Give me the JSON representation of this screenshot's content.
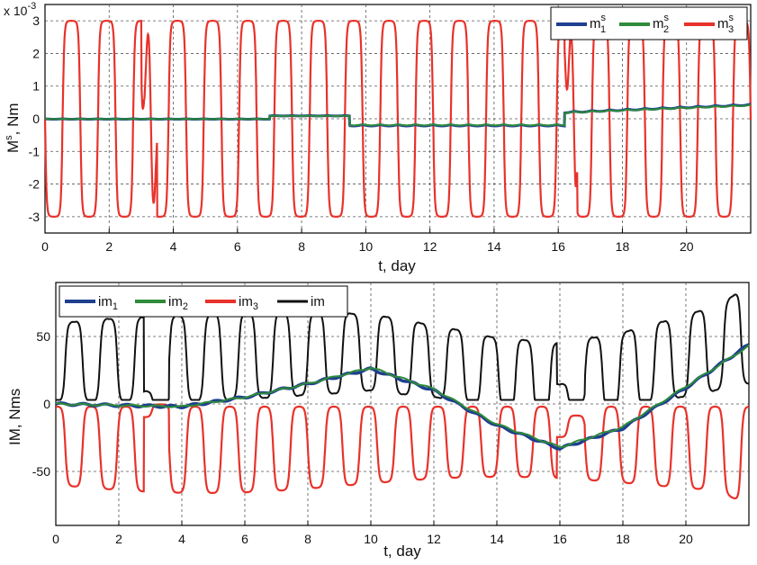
{
  "chart_data": [
    {
      "type": "line",
      "xlabel": "t, day",
      "ylabel_main": "M",
      "ylabel_sup": "s",
      "ylabel_rest": ", Nm",
      "exponent_base": "x 10",
      "exponent_power": "-3",
      "xlim": [
        0,
        22
      ],
      "ylim": [
        -3.5,
        3.5
      ],
      "xticks": [
        0,
        2,
        4,
        6,
        8,
        10,
        12,
        14,
        16,
        18,
        20
      ],
      "yticks": [
        -3,
        -2,
        -1,
        0,
        1,
        2,
        3
      ],
      "grid": true,
      "legend_position": "top-right",
      "series": [
        {
          "name": "m",
          "sub": "1",
          "sup": "s",
          "color": "#1f3f8f",
          "description": "near zero; ~0 until day 10, slightly negative oscillation to ~-0.2 around days 10-16, positive ~+0.25 with ripples after day 16"
        },
        {
          "name": "m",
          "sub": "2",
          "sup": "s",
          "color": "#2e8b3a",
          "description": "near zero, overlapping m1; +0.1 around day 8, -0.15 around day 14, +0.3 near day 21"
        },
        {
          "name": "m",
          "sub": "3",
          "sup": "s",
          "color": "#e8322b",
          "amplitude": 3,
          "period_days": 1.1,
          "description": "square-like oscillation between -3 and +3 with sharp spikes near days 3 and 16.3"
        }
      ]
    },
    {
      "type": "line",
      "xlabel": "t, day",
      "ylabel": "IM, Nms",
      "xlim": [
        0,
        22
      ],
      "ylim": [
        -90,
        90
      ],
      "xticks": [
        0,
        2,
        4,
        6,
        8,
        10,
        12,
        14,
        16,
        18,
        20
      ],
      "yticks": [
        -50,
        0,
        50
      ],
      "grid": true,
      "legend_position": "top-left",
      "series": [
        {
          "name": "im",
          "sub": "1",
          "color": "#1f3f8f",
          "trend_x": [
            0,
            2,
            4,
            6,
            8,
            10,
            12,
            14,
            16,
            18,
            20,
            22
          ],
          "trend_y": [
            0,
            -1,
            -2,
            5,
            15,
            26,
            10,
            -16,
            -33,
            -18,
            12,
            44
          ]
        },
        {
          "name": "im",
          "sub": "2",
          "color": "#2e8b3a",
          "trend_x": [
            0,
            2,
            4,
            6,
            8,
            10,
            12,
            14,
            16,
            18,
            20,
            22
          ],
          "trend_y": [
            0,
            -1,
            -2,
            5,
            15,
            27,
            11,
            -15,
            -32,
            -17,
            13,
            43
          ]
        },
        {
          "name": "im",
          "sub": "3",
          "color": "#e8322b",
          "description": "oscillates between about 0 and -60 with period ~1.1 day; ~-70 at day 22"
        },
        {
          "name": "im",
          "sub": "",
          "color": "#111111",
          "description": "total magnitude, oscillates between ~5 and ~60, rising to ~85 at day 22"
        }
      ]
    }
  ]
}
